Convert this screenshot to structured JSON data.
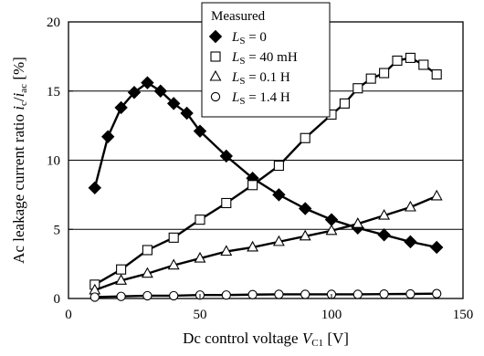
{
  "chart_data": {
    "type": "line",
    "xlim": [
      0,
      150
    ],
    "ylim": [
      0,
      20
    ],
    "xticks": [
      0,
      50,
      100,
      150
    ],
    "yticks": [
      0,
      5,
      10,
      15,
      20
    ],
    "grid": "horizontal",
    "legend_title": "Measured",
    "legend_position": "top-center",
    "xlabel": {
      "prefix": "Dc control voltage ",
      "var": "V",
      "sub": "C1",
      "suffix": " [V]"
    },
    "ylabel": {
      "prefix": "Ac leakage current ratio ",
      "var1": "i",
      "sub1": "c",
      "slash": "/",
      "var2": "i",
      "sub2": "ac",
      "suffix": " [%]"
    },
    "series": [
      {
        "name": {
          "var": "L",
          "sub": "S",
          "rest": " = 0"
        },
        "marker": "diamond-filled",
        "x": [
          10,
          15,
          20,
          25,
          30,
          35,
          40,
          45,
          50,
          60,
          70,
          80,
          90,
          100,
          110,
          120,
          130,
          140
        ],
        "y": [
          8.0,
          11.7,
          13.8,
          14.9,
          15.6,
          15.0,
          14.1,
          13.4,
          12.1,
          10.3,
          8.7,
          7.5,
          6.5,
          5.7,
          5.1,
          4.6,
          4.1,
          3.7
        ]
      },
      {
        "name": {
          "var": "L",
          "sub": "S",
          "rest": " = 40 mH"
        },
        "marker": "square-open",
        "x": [
          10,
          20,
          30,
          40,
          50,
          60,
          70,
          80,
          90,
          100,
          105,
          110,
          115,
          120,
          125,
          130,
          135,
          140
        ],
        "y": [
          1.0,
          2.1,
          3.5,
          4.4,
          5.7,
          6.9,
          8.2,
          9.6,
          11.6,
          13.3,
          14.1,
          15.2,
          15.9,
          16.3,
          17.2,
          17.4,
          16.9,
          16.2
        ]
      },
      {
        "name": {
          "var": "L",
          "sub": "S",
          "rest": " = 0.1 H"
        },
        "marker": "triangle-open",
        "x": [
          10,
          20,
          30,
          40,
          50,
          60,
          70,
          80,
          90,
          100,
          110,
          120,
          130,
          140
        ],
        "y": [
          0.6,
          1.3,
          1.8,
          2.4,
          2.9,
          3.4,
          3.7,
          4.1,
          4.5,
          4.9,
          5.4,
          6.0,
          6.6,
          7.4
        ]
      },
      {
        "name": {
          "var": "L",
          "sub": "S",
          "rest": " = 1.4 H"
        },
        "marker": "circle-open",
        "x": [
          10,
          20,
          30,
          40,
          50,
          60,
          70,
          80,
          90,
          100,
          110,
          120,
          130,
          140
        ],
        "y": [
          0.1,
          0.15,
          0.2,
          0.2,
          0.25,
          0.25,
          0.28,
          0.3,
          0.3,
          0.3,
          0.3,
          0.32,
          0.33,
          0.35
        ]
      }
    ]
  }
}
